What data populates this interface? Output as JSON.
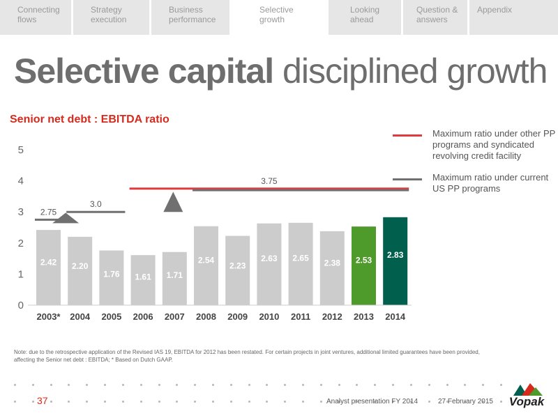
{
  "nav": {
    "tabs": [
      {
        "label": "Connecting\nflows",
        "active": false
      },
      {
        "label": "Strategy\nexecution",
        "active": false
      },
      {
        "label": "Business\nperformance",
        "active": false
      },
      {
        "label": "Selective\ngrowth",
        "active": true
      },
      {
        "label": "Looking\nahead",
        "active": false
      },
      {
        "label": "Question &\nanswers",
        "active": false
      },
      {
        "label": "Appendix",
        "active": false
      }
    ]
  },
  "title": {
    "bold": "Selective capital",
    "light": "disciplined growth"
  },
  "subtitle": "Senior net debt : EBITDA ratio",
  "legend": [
    {
      "label": "Maximum ratio under other PP programs and syndicated revolving credit facility",
      "color": "#e03a3e"
    },
    {
      "label": "Maximum ratio under current US PP programs",
      "color": "#707070"
    }
  ],
  "chart_data": {
    "type": "bar",
    "categories": [
      "2003*",
      "2004",
      "2005",
      "2006",
      "2007",
      "2008",
      "2009",
      "2010",
      "2011",
      "2012",
      "2013",
      "2014"
    ],
    "values": [
      2.42,
      2.2,
      1.76,
      1.61,
      1.71,
      2.54,
      2.23,
      2.63,
      2.65,
      2.38,
      2.53,
      2.83
    ],
    "value_labels": [
      "2.42",
      "2.20",
      "1.76",
      "1.61",
      "1.71",
      "2.54",
      "2.23",
      "2.63",
      "2.65",
      "2.38",
      "2.53",
      "2.83"
    ],
    "bar_colors": [
      "#cccccc",
      "#cccccc",
      "#cccccc",
      "#cccccc",
      "#cccccc",
      "#cccccc",
      "#cccccc",
      "#cccccc",
      "#cccccc",
      "#cccccc",
      "#4e9a2a",
      "#00604d"
    ],
    "ylim": [
      0,
      5
    ],
    "yticks": [
      "0",
      "1",
      "2",
      "3",
      "4",
      "5"
    ],
    "grid": false,
    "covenant_limits": [
      {
        "label": "2.75",
        "value": 2.75,
        "from": "2003*",
        "to": "2003*",
        "color": "#707070"
      },
      {
        "label": "3.0",
        "value": 3.0,
        "from": "2004",
        "to": "2005",
        "color": "#707070"
      },
      {
        "label": "3.75",
        "value": 3.75,
        "from": "2006",
        "to": "2014",
        "color": "#e03a3e"
      },
      {
        "value": 3.7,
        "from": "2008",
        "to": "2014",
        "color": "#707070"
      }
    ]
  },
  "footnote": "Note: due to the retrospective application of the Revised IAS 19, EBITDA for 2012 has been restated. For certain projects in joint ventures, additional limited guarantees have been provided, affecting the  Senior net debt : EBITDA; *  Based on Dutch GAAP.",
  "footer": {
    "page_number": "37",
    "presentation": "Analyst presentation FY 2014",
    "date": "27 February 2015",
    "logo_text": "Vopak"
  }
}
